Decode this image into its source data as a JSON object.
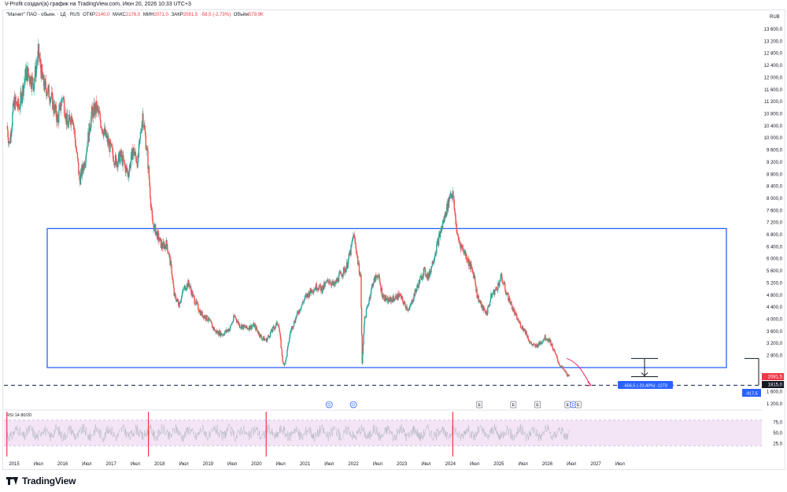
{
  "header": {
    "credit": "V-Profit создал(а) график на TradingView.com, Июн 20, 2026 10:33 UTC+3"
  },
  "legend": {
    "symbol": "\"Магнит\" ПАО - обыкн. · 1Д · RUS",
    "open_label": "ОТКР",
    "open_value": "2140,0",
    "high_label": "МАКС",
    "high_value": "2176,0",
    "low_label": "МИН",
    "low_value": "2071,0",
    "close_label": "ЗАКР",
    "close_value": "2081,5",
    "change": "-58,5 (-2,73%)",
    "volume_label": "Объём",
    "volume_value": "579,9K"
  },
  "rsi_legend": "RSI 14 80/20",
  "footer": {
    "brand": "TradingView"
  },
  "colors": {
    "up": "#26a69a",
    "down": "#ef5350",
    "box": "#2962ff",
    "rsi_band": "#f3e5f5",
    "rsi_line": "#b2b5be",
    "accent_red": "#f23645",
    "measure_blue": "#2962ff"
  },
  "chart_data": {
    "type": "candlestick",
    "currency": "RUB",
    "y_ticks": [
      "13 600,0",
      "13 200,0",
      "12 800,0",
      "12 400,0",
      "12 000,0",
      "11 600,0",
      "11 200,0",
      "10 800,0",
      "10 400,0",
      "10 000,0",
      "9 600,0",
      "9 200,0",
      "8 800,0",
      "8 400,0",
      "8 000,0",
      "7 600,0",
      "7 200,0",
      "6 800,0",
      "6 400,0",
      "6 000,0",
      "5 600,0",
      "5 200,0",
      "4 800,0",
      "4 400,0",
      "4 000,0",
      "3 600,0",
      "3 200,0",
      "2 800,0",
      "1 600,0",
      "1 200,0"
    ],
    "y_tick_values": [
      13600,
      13200,
      12800,
      12400,
      12000,
      11600,
      11200,
      10800,
      10400,
      10000,
      9600,
      9200,
      8800,
      8400,
      8000,
      7600,
      7200,
      6800,
      6400,
      6000,
      5600,
      5200,
      4800,
      4400,
      4000,
      3600,
      3200,
      2800,
      1600,
      1200
    ],
    "ylim": [
      1000,
      14000
    ],
    "x_ticks": [
      "2015",
      "Июл",
      "2016",
      "Июл",
      "2017",
      "Июл",
      "2018",
      "Июл",
      "2019",
      "Июл",
      "2020",
      "Июл",
      "2021",
      "Июл",
      "2022",
      "Июл",
      "2023",
      "Июл",
      "2024",
      "Июл",
      "2025",
      "Июл",
      "2026",
      "Июл",
      "2027",
      "Июл"
    ],
    "x_tick_values": [
      2015.0,
      2015.5,
      2016.0,
      2016.5,
      2017.0,
      2017.5,
      2018.0,
      2018.5,
      2019.0,
      2019.5,
      2020.0,
      2020.5,
      2021.0,
      2021.5,
      2022.0,
      2022.5,
      2023.0,
      2023.5,
      2024.0,
      2024.5,
      2025.0,
      2025.5,
      2026.0,
      2026.5,
      2027.0,
      2027.5
    ],
    "price_path": [
      [
        2014.85,
        10400
      ],
      [
        2014.9,
        9800
      ],
      [
        2015.0,
        11200
      ],
      [
        2015.1,
        11000
      ],
      [
        2015.25,
        12200
      ],
      [
        2015.4,
        11800
      ],
      [
        2015.5,
        12800
      ],
      [
        2015.6,
        11800
      ],
      [
        2015.75,
        11400
      ],
      [
        2015.9,
        10600
      ],
      [
        2016.0,
        11400
      ],
      [
        2016.1,
        10400
      ],
      [
        2016.2,
        10800
      ],
      [
        2016.35,
        8600
      ],
      [
        2016.45,
        9200
      ],
      [
        2016.6,
        10800
      ],
      [
        2016.7,
        11000
      ],
      [
        2016.85,
        10200
      ],
      [
        2017.0,
        9600
      ],
      [
        2017.1,
        9200
      ],
      [
        2017.2,
        9400
      ],
      [
        2017.35,
        8800
      ],
      [
        2017.45,
        9600
      ],
      [
        2017.55,
        9200
      ],
      [
        2017.65,
        10800
      ],
      [
        2017.75,
        9400
      ],
      [
        2017.85,
        7200
      ],
      [
        2017.95,
        6800
      ],
      [
        2018.05,
        6400
      ],
      [
        2018.15,
        6500
      ],
      [
        2018.25,
        5600
      ],
      [
        2018.3,
        4800
      ],
      [
        2018.4,
        4500
      ],
      [
        2018.5,
        5000
      ],
      [
        2018.6,
        5200
      ],
      [
        2018.7,
        4700
      ],
      [
        2018.85,
        4200
      ],
      [
        2019.0,
        4000
      ],
      [
        2019.15,
        3600
      ],
      [
        2019.3,
        3500
      ],
      [
        2019.45,
        3700
      ],
      [
        2019.55,
        4100
      ],
      [
        2019.65,
        3800
      ],
      [
        2019.8,
        3700
      ],
      [
        2019.95,
        3800
      ],
      [
        2020.1,
        3400
      ],
      [
        2020.2,
        3300
      ],
      [
        2020.35,
        3700
      ],
      [
        2020.45,
        3900
      ],
      [
        2020.55,
        2500
      ],
      [
        2020.6,
        2600
      ],
      [
        2020.7,
        3600
      ],
      [
        2020.85,
        4200
      ],
      [
        2021.0,
        4700
      ],
      [
        2021.1,
        4900
      ],
      [
        2021.25,
        5100
      ],
      [
        2021.35,
        5000
      ],
      [
        2021.5,
        5300
      ],
      [
        2021.6,
        5100
      ],
      [
        2021.7,
        5400
      ],
      [
        2021.85,
        5700
      ],
      [
        2021.95,
        6300
      ],
      [
        2022.0,
        6800
      ],
      [
        2022.05,
        6400
      ],
      [
        2022.1,
        5800
      ],
      [
        2022.15,
        5400
      ],
      [
        2022.18,
        2500
      ],
      [
        2022.22,
        3900
      ],
      [
        2022.3,
        4500
      ],
      [
        2022.4,
        5200
      ],
      [
        2022.5,
        5500
      ],
      [
        2022.6,
        4800
      ],
      [
        2022.7,
        4600
      ],
      [
        2022.85,
        4700
      ],
      [
        2022.95,
        4800
      ],
      [
        2023.05,
        4500
      ],
      [
        2023.15,
        4300
      ],
      [
        2023.25,
        4800
      ],
      [
        2023.35,
        5200
      ],
      [
        2023.45,
        5600
      ],
      [
        2023.55,
        5400
      ],
      [
        2023.65,
        6000
      ],
      [
        2023.75,
        6600
      ],
      [
        2023.85,
        7200
      ],
      [
        2023.95,
        7800
      ],
      [
        2024.0,
        8200
      ],
      [
        2024.05,
        8100
      ],
      [
        2024.1,
        7400
      ],
      [
        2024.15,
        6700
      ],
      [
        2024.2,
        6500
      ],
      [
        2024.3,
        6200
      ],
      [
        2024.4,
        5800
      ],
      [
        2024.5,
        5400
      ],
      [
        2024.55,
        4800
      ],
      [
        2024.65,
        4400
      ],
      [
        2024.75,
        4200
      ],
      [
        2024.85,
        4800
      ],
      [
        2024.95,
        5000
      ],
      [
        2025.05,
        5400
      ],
      [
        2025.15,
        4900
      ],
      [
        2025.25,
        4500
      ],
      [
        2025.35,
        4100
      ],
      [
        2025.45,
        3800
      ],
      [
        2025.55,
        3600
      ],
      [
        2025.65,
        3200
      ],
      [
        2025.75,
        3100
      ],
      [
        2025.85,
        3200
      ],
      [
        2025.95,
        3400
      ],
      [
        2026.05,
        3300
      ],
      [
        2026.15,
        2900
      ],
      [
        2026.25,
        2500
      ],
      [
        2026.35,
        2300
      ],
      [
        2026.45,
        2081.5
      ]
    ],
    "range_box": {
      "x_start": 2015.65,
      "x_end": 2029.5,
      "y_top": 7000,
      "y_bottom": 2400
    },
    "level_dashed": 1815,
    "projection_path": [
      [
        2026.4,
        2700
      ],
      [
        2026.6,
        2600
      ],
      [
        2026.75,
        2200
      ],
      [
        2026.9,
        1820
      ]
    ],
    "measure": {
      "x": 2028.5,
      "y_top": 2700,
      "y_bottom": 2100,
      "label": "-656,5 (-23,40%) -1273"
    },
    "right_tool": {
      "label": "-917,5"
    },
    "price_labels": [
      {
        "text": "2081,5",
        "color": "#f23645",
        "value": 2081.5
      },
      {
        "text": "1815,0",
        "color": "#131722",
        "value": 1815
      }
    ],
    "event_markers": [
      {
        "text": "D",
        "x": 2021.5,
        "kind": "dividend"
      },
      {
        "text": "D",
        "x": 2022.0,
        "kind": "dividend"
      },
      {
        "text": "E",
        "x": 2024.6,
        "kind": "earnings"
      },
      {
        "text": "E",
        "x": 2025.3,
        "kind": "earnings"
      },
      {
        "text": "E",
        "x": 2025.8,
        "kind": "earnings"
      },
      {
        "text": "E",
        "x": 2026.42,
        "kind": "earnings"
      },
      {
        "text": "D",
        "x": 2026.54,
        "kind": "dividend"
      },
      {
        "text": "E",
        "x": 2026.64,
        "kind": "earnings"
      }
    ],
    "rsi": {
      "upper": 80,
      "lower": 20,
      "ticks": [
        "75,0",
        "50,0",
        "25,0"
      ],
      "tick_values": [
        75,
        50,
        25
      ],
      "red_markers": [
        2014.85,
        2017.77,
        2020.2,
        2024.05
      ]
    }
  }
}
